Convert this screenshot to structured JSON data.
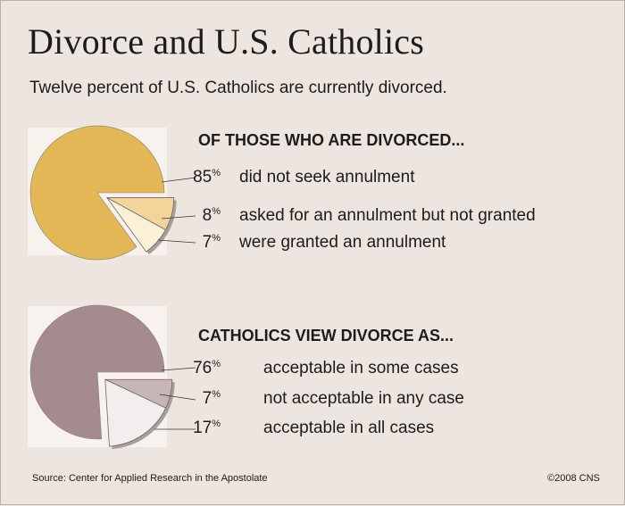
{
  "title": "Divorce and U.S. Catholics",
  "subtitle": "Twelve percent of U.S. Catholics are currently divorced.",
  "source": "Source: Center for Applied Research in the Apostolate",
  "copyright": "©2008 CNS",
  "chart_data": [
    {
      "type": "pie",
      "title": "OF THOSE WHO ARE DIVORCED...",
      "unit": "%",
      "slices": [
        {
          "label": "did not seek annulment",
          "value": 85,
          "color": "#e3b755",
          "exploded": false
        },
        {
          "label": "asked for an annulment but not granted",
          "value": 8,
          "color": "#f1d59a",
          "exploded": true
        },
        {
          "label": "were granted an annulment",
          "value": 7,
          "color": "#fbf1d7",
          "exploded": true
        }
      ]
    },
    {
      "type": "pie",
      "title": "CATHOLICS VIEW DIVORCE AS...",
      "unit": "%",
      "slices": [
        {
          "label": "acceptable in some cases",
          "value": 76,
          "color": "#a48b8e",
          "exploded": false
        },
        {
          "label": "not acceptable in any case",
          "value": 7,
          "color": "#c8b5b6",
          "exploded": true
        },
        {
          "label": "acceptable in all cases",
          "value": 17,
          "color": "#f3eeee",
          "exploded": true
        }
      ]
    }
  ]
}
